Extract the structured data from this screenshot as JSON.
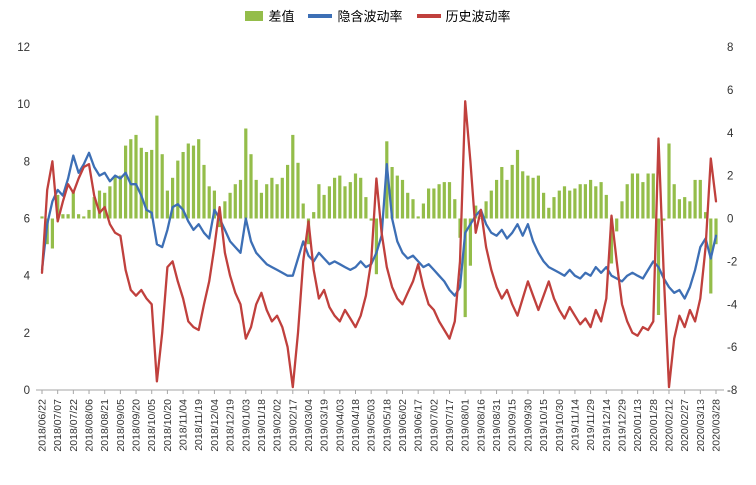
{
  "chart_data": {
    "type": "combo",
    "title": "",
    "left_axis": {
      "min": 0,
      "max": 12,
      "ticks": [
        0,
        2,
        4,
        6,
        8,
        10,
        12
      ]
    },
    "right_axis": {
      "min": -8,
      "max": 8,
      "ticks": [
        -8,
        -6,
        -4,
        -2,
        0,
        2,
        4,
        6,
        8
      ]
    },
    "grid": "off",
    "legend_position": "top",
    "points_per_label": 3,
    "x_labels": [
      "2018/06/22",
      "2018/07/07",
      "2018/07/22",
      "2018/08/06",
      "2018/08/21",
      "2018/09/05",
      "2018/09/20",
      "2018/10/05",
      "2018/10/20",
      "2018/11/04",
      "2018/11/19",
      "2018/12/04",
      "2018/12/19",
      "2019/01/03",
      "2019/01/18",
      "2019/02/02",
      "2019/02/17",
      "2019/03/04",
      "2019/03/19",
      "2019/04/03",
      "2019/04/18",
      "2019/05/03",
      "2019/05/18",
      "2019/06/02",
      "2019/06/17",
      "2019/07/02",
      "2019/07/17",
      "2019/08/01",
      "2019/08/16",
      "2019/08/31",
      "2019/09/15",
      "2019/09/30",
      "2019/10/15",
      "2019/10/30",
      "2019/11/14",
      "2019/11/29",
      "2019/12/14",
      "2019/12/29",
      "2020/01/13",
      "2020/01/28",
      "2020/02/12",
      "2020/02/27",
      "2020/03/13",
      "2020/03/28"
    ],
    "series": [
      {
        "name": "差值",
        "type": "bar",
        "axis": "right",
        "color": "#94BD4A",
        "values": [
          0.1,
          -1.2,
          -1.4,
          1.1,
          0.2,
          0.2,
          1.3,
          0.2,
          0.1,
          0.4,
          1.0,
          1.3,
          1.2,
          1.5,
          2.0,
          2.0,
          3.4,
          3.7,
          3.9,
          3.3,
          3.1,
          3.2,
          4.8,
          3.0,
          1.3,
          1.9,
          2.7,
          3.1,
          3.5,
          3.4,
          3.7,
          2.5,
          1.5,
          1.3,
          -0.4,
          0.8,
          1.2,
          1.6,
          1.8,
          4.2,
          3.0,
          1.8,
          1.2,
          1.6,
          1.9,
          1.6,
          1.9,
          2.5,
          3.9,
          2.6,
          0.7,
          -1.2,
          0.3,
          1.6,
          1.1,
          1.5,
          1.9,
          2.0,
          1.5,
          1.7,
          2.1,
          1.9,
          1.0,
          -0.1,
          -2.6,
          -0.1,
          3.6,
          2.4,
          2.0,
          1.8,
          1.2,
          0.9,
          0.1,
          0.7,
          1.4,
          1.4,
          1.6,
          1.7,
          1.7,
          0.9,
          -0.9,
          -4.6,
          -2.2,
          0.6,
          0.0,
          0.8,
          1.3,
          1.8,
          2.4,
          1.8,
          2.5,
          3.2,
          2.2,
          2.0,
          1.9,
          2.0,
          1.2,
          0.5,
          1.0,
          1.3,
          1.5,
          1.3,
          1.4,
          1.6,
          1.6,
          1.8,
          1.5,
          1.7,
          1.1,
          -2.1,
          -0.6,
          0.8,
          1.6,
          2.1,
          2.1,
          1.7,
          2.1,
          2.1,
          -4.5,
          -0.1,
          3.5,
          1.6,
          0.9,
          1.0,
          0.8,
          1.8,
          1.8,
          0.3,
          -3.5,
          -1.2
        ]
      },
      {
        "name": "隐含波动率",
        "type": "line",
        "axis": "left",
        "color": "#3D6FB5",
        "values": [
          4.2,
          5.8,
          6.6,
          7.0,
          6.8,
          7.4,
          8.2,
          7.6,
          7.9,
          8.3,
          7.8,
          7.5,
          7.6,
          7.3,
          7.5,
          7.4,
          7.6,
          7.2,
          7.2,
          6.8,
          6.3,
          6.2,
          5.1,
          5.0,
          5.6,
          6.4,
          6.5,
          6.3,
          5.9,
          5.6,
          5.8,
          5.5,
          5.3,
          6.3,
          6.0,
          5.6,
          5.2,
          5.0,
          4.8,
          6.0,
          5.2,
          4.8,
          4.6,
          4.4,
          4.3,
          4.2,
          4.1,
          4.0,
          4.0,
          4.6,
          5.2,
          4.7,
          4.5,
          4.8,
          4.6,
          4.4,
          4.5,
          4.4,
          4.3,
          4.2,
          4.3,
          4.5,
          4.3,
          4.4,
          4.8,
          5.4,
          7.9,
          6.0,
          5.2,
          4.8,
          4.6,
          4.7,
          4.5,
          4.3,
          4.4,
          4.2,
          4.0,
          3.8,
          3.5,
          3.3,
          3.6,
          5.5,
          5.8,
          6.1,
          6.3,
          5.8,
          5.5,
          5.4,
          5.6,
          5.3,
          5.5,
          5.8,
          5.4,
          5.8,
          5.2,
          4.8,
          4.5,
          4.3,
          4.2,
          4.1,
          4.0,
          4.2,
          4.0,
          3.9,
          4.1,
          4.0,
          4.3,
          4.1,
          4.3,
          4.0,
          3.9,
          3.8,
          4.0,
          4.1,
          4.0,
          3.9,
          4.2,
          4.5,
          4.3,
          3.9,
          3.6,
          3.4,
          3.5,
          3.2,
          3.6,
          4.2,
          5.0,
          5.3,
          4.6,
          5.4
        ]
      },
      {
        "name": "历史波动率",
        "type": "line",
        "axis": "left",
        "color": "#C0403D",
        "values": [
          4.1,
          7.0,
          8.0,
          5.9,
          6.6,
          7.2,
          6.9,
          7.4,
          7.8,
          7.9,
          6.8,
          6.2,
          6.4,
          5.8,
          5.5,
          5.4,
          4.2,
          3.5,
          3.3,
          3.5,
          3.2,
          3.0,
          0.3,
          2.0,
          4.3,
          4.5,
          3.8,
          3.2,
          2.4,
          2.2,
          2.1,
          3.0,
          3.8,
          5.0,
          6.4,
          4.8,
          4.0,
          3.4,
          3.0,
          1.8,
          2.2,
          3.0,
          3.4,
          2.8,
          2.4,
          2.6,
          2.2,
          1.5,
          0.1,
          2.0,
          4.5,
          5.9,
          4.2,
          3.2,
          3.5,
          2.9,
          2.6,
          2.4,
          2.8,
          2.5,
          2.2,
          2.6,
          3.3,
          4.5,
          7.4,
          5.5,
          4.3,
          3.6,
          3.2,
          3.0,
          3.4,
          3.8,
          4.4,
          3.6,
          3.0,
          2.8,
          2.4,
          2.1,
          1.8,
          2.4,
          4.5,
          10.1,
          8.0,
          5.5,
          6.3,
          5.0,
          4.2,
          3.6,
          3.2,
          3.5,
          3.0,
          2.6,
          3.2,
          3.8,
          3.3,
          2.8,
          3.3,
          3.8,
          3.2,
          2.8,
          2.5,
          2.9,
          2.6,
          2.3,
          2.5,
          2.2,
          2.8,
          2.4,
          3.2,
          6.1,
          4.5,
          3.0,
          2.4,
          2.0,
          1.9,
          2.2,
          2.1,
          2.4,
          8.8,
          4.0,
          0.1,
          1.8,
          2.6,
          2.2,
          2.8,
          2.4,
          3.2,
          5.0,
          8.1,
          6.6
        ]
      }
    ],
    "axis_label_color": "#333333",
    "axis_line_color": "#A6A6A6"
  }
}
